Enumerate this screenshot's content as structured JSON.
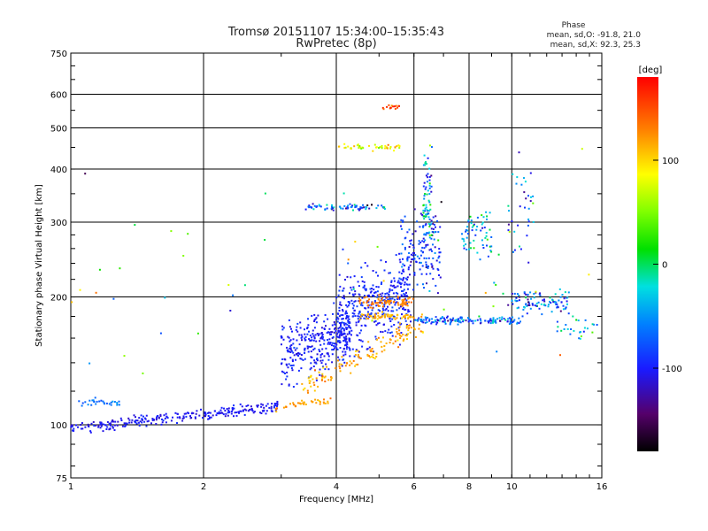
{
  "header": {
    "title_line1": "Tromsø 20151107 15:34:00–15:35:43",
    "title_line2": "RwPretec (8p)",
    "phase_heading": "Phase",
    "phase_o": "mean, sd,O: -91.8, 21.0",
    "phase_x": "mean, sd,X:  92.3, 25.3"
  },
  "colorbar": {
    "unit_label": "[deg]",
    "range": [
      -180,
      180
    ],
    "ticks": [
      {
        "label": "100",
        "value": 100
      },
      {
        "label": "0",
        "value": 0
      },
      {
        "label": "-100",
        "value": -100
      }
    ]
  },
  "chart_data": {
    "type": "scatter",
    "xlabel": "Frequency [MHz]",
    "ylabel": "Stationary phase Virtual Height [km]",
    "xscale": "log",
    "yscale": "log",
    "xlim": [
      1,
      16
    ],
    "ylim": [
      75,
      750
    ],
    "xticks": [
      {
        "label": "1",
        "value": 1
      },
      {
        "label": "2",
        "value": 2
      },
      {
        "label": "4",
        "value": 4
      },
      {
        "label": "6",
        "value": 6
      },
      {
        "label": "8",
        "value": 8
      },
      {
        "label": "10",
        "value": 10
      },
      {
        "label": "16",
        "value": 16
      }
    ],
    "yticks": [
      {
        "label": "75",
        "value": 75
      },
      {
        "label": "100",
        "value": 100
      },
      {
        "label": "200",
        "value": 200
      },
      {
        "label": "300",
        "value": 300
      },
      {
        "label": "400",
        "value": 400
      },
      {
        "label": "500",
        "value": 500
      },
      {
        "label": "600",
        "value": 600
      },
      {
        "label": "750",
        "value": 750
      }
    ],
    "grid": true,
    "point_groups": [
      {
        "x_range": [
          1.0,
          2.95
        ],
        "y_center": 104,
        "y_spread": 0.05,
        "y_trend": 0.12,
        "phase": -105,
        "phase_spread": 20,
        "count": 260
      },
      {
        "x_range": [
          1.0,
          1.3
        ],
        "y_center": 113,
        "y_spread": 0.04,
        "y_trend": 0,
        "phase": -60,
        "phase_spread": 35,
        "count": 30
      },
      {
        "x_range": [
          2.9,
          3.9
        ],
        "y_center": 112,
        "y_spread": 0.03,
        "y_trend": 0.05,
        "phase": 120,
        "phase_spread": 30,
        "count": 40
      },
      {
        "x_range": [
          3.0,
          4.3
        ],
        "y_center": 155,
        "y_spread": 0.28,
        "y_trend": 0.1,
        "phase": -100,
        "phase_spread": 25,
        "count": 320
      },
      {
        "x_range": [
          4.0,
          5.9
        ],
        "y_center": 190,
        "y_spread": 0.35,
        "y_trend": 0.15,
        "phase": -95,
        "phase_spread": 25,
        "count": 380
      },
      {
        "x_range": [
          3.3,
          6.3
        ],
        "y_center": 145,
        "y_spread": 0.1,
        "y_trend": 0.35,
        "phase": 115,
        "phase_spread": 30,
        "count": 130
      },
      {
        "x_range": [
          4.5,
          6.0
        ],
        "y_center": 195,
        "y_spread": 0.05,
        "y_trend": 0,
        "phase": 130,
        "phase_spread": 20,
        "count": 80
      },
      {
        "x_range": [
          4.5,
          6.0
        ],
        "y_center": 180,
        "y_spread": 0.03,
        "y_trend": 0,
        "phase": 115,
        "phase_spread": 25,
        "count": 60
      },
      {
        "x_range": [
          5.6,
          6.9
        ],
        "y_center": 260,
        "y_spread": 0.35,
        "y_trend": 0,
        "phase": -90,
        "phase_spread": 60,
        "count": 150
      },
      {
        "x_range": [
          6.0,
          10.5
        ],
        "y_center": 176,
        "y_spread": 0.03,
        "y_trend": 0,
        "phase": -70,
        "phase_spread": 90,
        "count": 140
      },
      {
        "x_range": [
          3.4,
          5.2
        ],
        "y_center": 325,
        "y_spread": 0.03,
        "y_trend": 0,
        "phase": -80,
        "phase_spread": 110,
        "count": 70
      },
      {
        "x_range": [
          4.0,
          5.6
        ],
        "y_center": 450,
        "y_spread": 0.03,
        "y_trend": 0,
        "phase": 80,
        "phase_spread": 60,
        "count": 45
      },
      {
        "x_range": [
          5.1,
          5.6
        ],
        "y_center": 560,
        "y_spread": 0.03,
        "y_trend": 0,
        "phase": 150,
        "phase_spread": 50,
        "count": 15
      },
      {
        "x_range": [
          6.3,
          6.6
        ],
        "y_center": 330,
        "y_spread": 0.45,
        "y_trend": 0,
        "phase": -40,
        "phase_spread": 120,
        "count": 70
      },
      {
        "x_range": [
          7.7,
          9.0
        ],
        "y_center": 280,
        "y_spread": 0.22,
        "y_trend": 0,
        "phase": -40,
        "phase_spread": 100,
        "count": 60
      },
      {
        "x_range": [
          10.0,
          13.5
        ],
        "y_center": 195,
        "y_spread": 0.12,
        "y_trend": 0,
        "phase": -70,
        "phase_spread": 100,
        "count": 100
      },
      {
        "x_range": [
          9.8,
          11.2
        ],
        "y_center": 330,
        "y_spread": 0.5,
        "y_trend": 0,
        "phase": -70,
        "phase_spread": 120,
        "count": 35
      },
      {
        "x_range": [
          12.5,
          15.5
        ],
        "y_center": 170,
        "y_spread": 0.12,
        "y_trend": 0,
        "phase": -40,
        "phase_spread": 120,
        "count": 25
      },
      {
        "x_range": [
          1.0,
          16.0
        ],
        "y_center": 230,
        "y_spread": 0.9,
        "y_trend": 0,
        "phase": 0,
        "phase_spread": 180,
        "count": 50
      }
    ]
  }
}
